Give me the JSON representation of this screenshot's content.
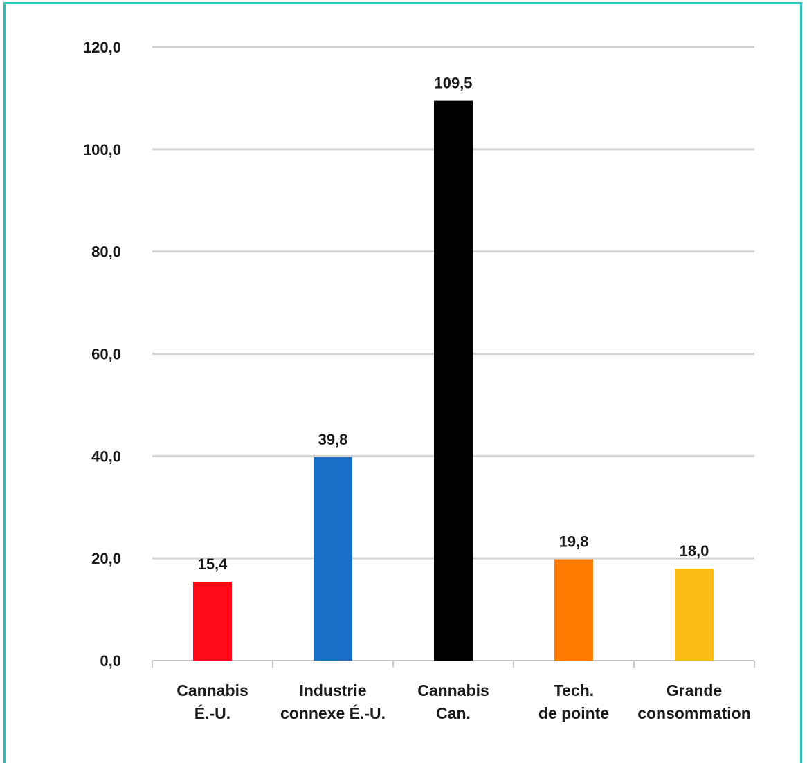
{
  "chart_data": {
    "type": "bar",
    "title": "",
    "xlabel": "",
    "ylabel": "",
    "categories": [
      [
        "Cannabis",
        "É.-U."
      ],
      [
        "Industrie",
        "connexe É.-U."
      ],
      [
        "Cannabis",
        "Can."
      ],
      [
        "Tech.",
        "de pointe"
      ],
      [
        "Grande",
        "consommation"
      ]
    ],
    "values": [
      15.4,
      39.8,
      109.5,
      19.8,
      18.0
    ],
    "value_labels": [
      "15,4",
      "39,8",
      "109,5",
      "19,8",
      "18,0"
    ],
    "colors": [
      "#ff0a16",
      "#1a6fc8",
      "#000000",
      "#ff7a00",
      "#fcbc16"
    ],
    "ylim": [
      0,
      120
    ],
    "yticks": [
      0,
      20,
      40,
      60,
      80,
      100,
      120
    ],
    "ytick_labels": [
      "0,0",
      "20,0",
      "40,0",
      "60,0",
      "80,0",
      "100,0",
      "120,0"
    ],
    "grid": true,
    "legend": "none"
  },
  "style": {
    "frame_color": "#2bbfb8",
    "grid_color": "#d4d4d4",
    "axis_color": "#c8c8c8",
    "text_color": "#1a1a1a"
  }
}
